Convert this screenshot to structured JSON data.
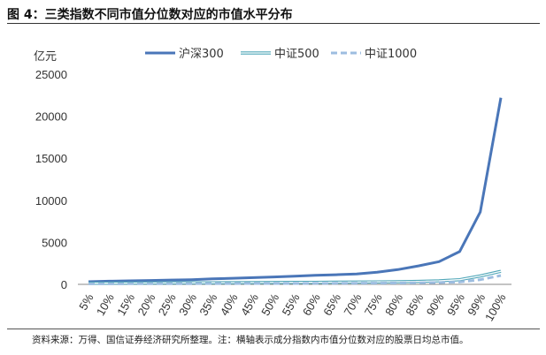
{
  "figure": {
    "title": "图 4：三类指数不同市值分位数对应的市值水平分布",
    "source": "资料来源：万得、国信证券经济研究所整理。注：横轴表示成分指数内市值分位数对应的股票日均总市值。"
  },
  "chart_data": {
    "type": "line",
    "ylabel": "亿元",
    "ylim": [
      0,
      25000
    ],
    "yticks": [
      0,
      5000,
      10000,
      15000,
      20000,
      25000
    ],
    "grid": false,
    "legend_position": "top",
    "categories": [
      "5%",
      "10%",
      "15%",
      "20%",
      "25%",
      "30%",
      "35%",
      "40%",
      "45%",
      "50%",
      "55%",
      "60%",
      "65%",
      "70%",
      "75%",
      "80%",
      "85%",
      "90%",
      "95%",
      "99%",
      "100%"
    ],
    "series": [
      {
        "name": "沪深300",
        "color": "#4a76b8",
        "style": "solid",
        "values": [
          320,
          380,
          420,
          460,
          510,
          560,
          650,
          720,
          800,
          880,
          980,
          1080,
          1150,
          1230,
          1450,
          1750,
          2200,
          2700,
          3900,
          8600,
          22200
        ]
      },
      {
        "name": "中证500",
        "color": "#4fa6b8",
        "style": "double",
        "values": [
          130,
          140,
          150,
          160,
          170,
          180,
          190,
          200,
          210,
          220,
          230,
          245,
          260,
          275,
          295,
          320,
          360,
          420,
          560,
          1000,
          1550
        ]
      },
      {
        "name": "中证1000",
        "color": "#9dbde0",
        "style": "dashed",
        "values": [
          60,
          65,
          70,
          75,
          80,
          85,
          90,
          95,
          100,
          105,
          110,
          118,
          125,
          135,
          145,
          160,
          185,
          215,
          280,
          560,
          1050
        ]
      }
    ]
  }
}
